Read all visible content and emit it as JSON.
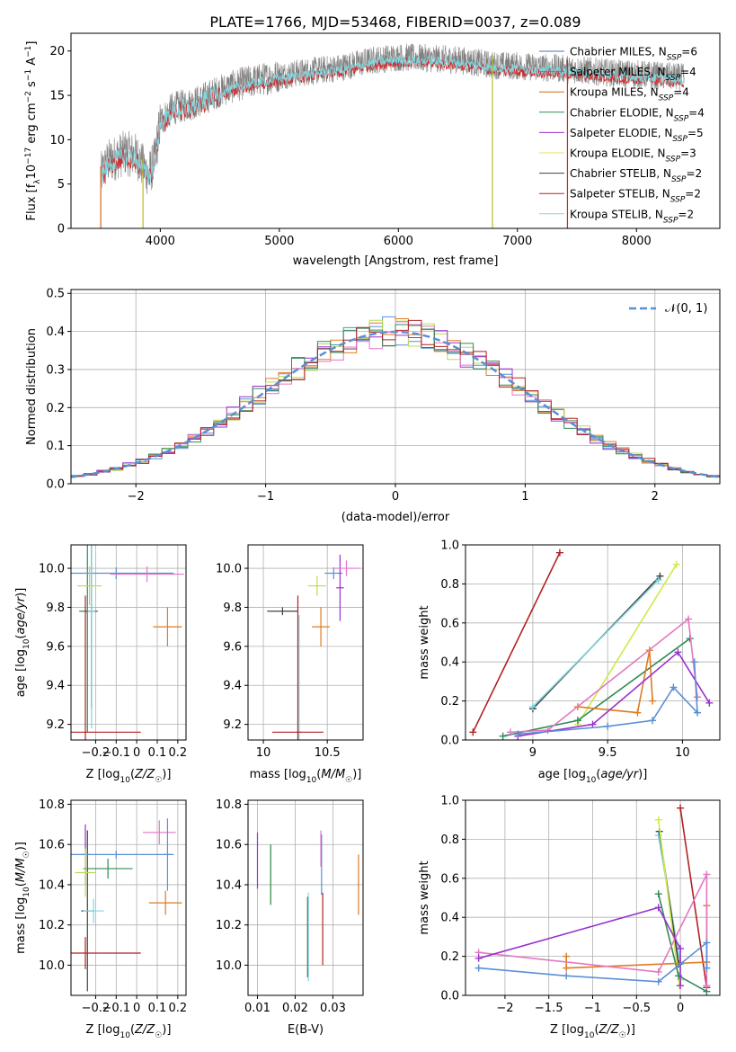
{
  "figure": {
    "title": "PLATE=1766, MJD=53468, FIBERID=0037, z=0.089"
  },
  "chart_data": [
    {
      "id": "spectrum",
      "type": "line",
      "xlabel": "wavelength [Angstrom, rest frame]",
      "ylabel": "Flux [f_λ10^-17 erg cm^-2 s^-1 A^-1]",
      "xlim": [
        3250,
        8700
      ],
      "ylim": [
        0,
        22
      ],
      "xticks": [
        4000,
        5000,
        6000,
        7000,
        8000
      ],
      "yticks": [
        0,
        5,
        10,
        15,
        20
      ],
      "grid": false,
      "legend_position": "top-right",
      "data_color": "#808080",
      "model_color": "#7ed7e0",
      "model2_color": "#d62728",
      "data_range": [
        3500,
        8400
      ],
      "spikes": [
        {
          "x": 3500,
          "color": "#d2691e"
        },
        {
          "x": 3855,
          "color": "#bcbd22"
        },
        {
          "x": 6790,
          "color": "#bcbd22"
        },
        {
          "x": 7420,
          "color": "#d62728"
        }
      ],
      "envelope": [
        [
          3500,
          6
        ],
        [
          3560,
          7.5
        ],
        [
          3700,
          8.5
        ],
        [
          3800,
          8.2
        ],
        [
          3900,
          6
        ],
        [
          3950,
          7.5
        ],
        [
          4000,
          12
        ],
        [
          4100,
          13.5
        ],
        [
          4300,
          14.2
        ],
        [
          4500,
          15.5
        ],
        [
          4700,
          16.4
        ],
        [
          5000,
          17.2
        ],
        [
          5200,
          17.6
        ],
        [
          5500,
          18.1
        ],
        [
          5800,
          19
        ],
        [
          6000,
          19.3
        ],
        [
          6200,
          19.2
        ],
        [
          6500,
          19
        ],
        [
          6800,
          18.4
        ],
        [
          7000,
          18.3
        ],
        [
          7400,
          18
        ],
        [
          7800,
          17.5
        ],
        [
          8000,
          17.4
        ],
        [
          8400,
          17
        ]
      ],
      "series": [
        {
          "name": "Chabrier MILES, N_SSP=6",
          "color": "#4c72b0"
        },
        {
          "name": "Salpeter MILES, N_SSP=4",
          "color": "#9467bd"
        },
        {
          "name": "Kroupa MILES, N_SSP=4",
          "color": "#d2691e"
        },
        {
          "name": "Chabrier ELODIE, N_SSP=4",
          "color": "#2e8b57"
        },
        {
          "name": "Salpeter ELODIE, N_SSP=5",
          "color": "#9932cc"
        },
        {
          "name": "Kroupa ELODIE, N_SSP=3",
          "color": "#e5e55c"
        },
        {
          "name": "Chabrier STELIB, N_SSP=2",
          "color": "#404040"
        },
        {
          "name": "Salpeter STELIB, N_SSP=2",
          "color": "#b22222"
        },
        {
          "name": "Kroupa STELIB, N_SSP=2",
          "color": "#7ed7e0"
        }
      ]
    },
    {
      "id": "residuals",
      "type": "line",
      "xlabel": "(data-model)/error",
      "ylabel": "Normed distribution",
      "xlim": [
        -2.5,
        2.5
      ],
      "ylim": [
        0,
        0.51
      ],
      "xticks": [
        -2,
        -1,
        0,
        1,
        2
      ],
      "yticks": [
        0.0,
        0.1,
        0.2,
        0.3,
        0.4,
        0.5
      ],
      "grid": true,
      "legend_position": "top-right",
      "gaussian_label": "𝒩(0, 1)",
      "gaussian_color": "#5b8fd6",
      "bin_width": 0.1,
      "series": [
        {
          "color": "#5b8fd6",
          "offset": 0.0
        },
        {
          "color": "#e07b20",
          "offset": 0.01
        },
        {
          "color": "#bada55",
          "offset": -0.01
        },
        {
          "color": "#9932cc",
          "offset": 0.015
        },
        {
          "color": "#e377c2",
          "offset": -0.005
        },
        {
          "color": "#2e8b57",
          "offset": 0.005
        },
        {
          "color": "#b22222",
          "offset": -0.012
        }
      ]
    },
    {
      "id": "age-vs-Z",
      "type": "scatter",
      "xlabel": "Z [log10(Z/Z☉)]",
      "ylabel": "age [log10(age/yr)]",
      "xlim": [
        -0.32,
        0.24
      ],
      "ylim": [
        9.12,
        10.12
      ],
      "xticks": [
        -0.2,
        -0.1,
        0.0,
        0.1,
        0.2
      ],
      "yticks": [
        9.2,
        9.4,
        9.6,
        9.8,
        10.0
      ],
      "grid": true,
      "points": [
        {
          "x": -0.24,
          "y": 9.78,
          "xerr": 0.04,
          "yerr": 0.62,
          "color": "#2e8b57"
        },
        {
          "x": -0.22,
          "y": 9.78,
          "xerr": 0.03,
          "yerr": 0.5,
          "color": "#404040"
        },
        {
          "x": -0.1,
          "y": 9.975,
          "xerr": 0.28,
          "yerr": 0.03,
          "color": "#5b8fd6"
        },
        {
          "x": 0.15,
          "y": 9.7,
          "xerr": 0.07,
          "yerr": 0.1,
          "color": "#e07b20"
        },
        {
          "x": -0.25,
          "y": 9.16,
          "xerr": 0.27,
          "yerr": 0.7,
          "color": "#b22222"
        },
        {
          "x": -0.22,
          "y": 9.78,
          "xerr": 0.02,
          "yerr": 0.6,
          "color": "#7ed7e0"
        },
        {
          "x": -0.23,
          "y": 9.91,
          "xerr": 0.06,
          "yerr": 0.1,
          "color": "#bada55"
        },
        {
          "x": 0.05,
          "y": 9.97,
          "xerr": 0.18,
          "yerr": 0.04,
          "color": "#e377c2"
        }
      ]
    },
    {
      "id": "age-vs-mass",
      "type": "scatter",
      "xlabel": "mass [log10(M/M☉)]",
      "ylabel": "",
      "xlim": [
        9.88,
        10.78
      ],
      "ylim": [
        9.12,
        10.12
      ],
      "xticks": [
        10.0,
        10.5
      ],
      "yticks": [
        9.2,
        9.4,
        9.6,
        9.8,
        10.0
      ],
      "grid": true,
      "points": [
        {
          "x": 10.15,
          "y": 9.78,
          "xerr": 0.12,
          "yerr": 0.02,
          "color": "#404040"
        },
        {
          "x": 10.28,
          "y": 9.16,
          "xerr": 0.02,
          "yerr": 0.6,
          "color": "#7ed7e0"
        },
        {
          "x": 10.27,
          "y": 9.16,
          "xerr": 0.2,
          "yerr": 0.7,
          "color": "#b22222"
        },
        {
          "x": 10.45,
          "y": 9.7,
          "xerr": 0.07,
          "yerr": 0.1,
          "color": "#e07b20"
        },
        {
          "x": 10.55,
          "y": 9.975,
          "xerr": 0.07,
          "yerr": 0.03,
          "color": "#5b8fd6"
        },
        {
          "x": 10.6,
          "y": 9.9,
          "xerr": 0.03,
          "yerr": 0.17,
          "color": "#9932cc"
        },
        {
          "x": 10.65,
          "y": 10.0,
          "xerr": 0.1,
          "yerr": 0.04,
          "color": "#e377c2"
        },
        {
          "x": 10.42,
          "y": 9.91,
          "xerr": 0.07,
          "yerr": 0.05,
          "color": "#bada55"
        }
      ]
    },
    {
      "id": "weight-vs-age",
      "type": "line",
      "xlabel": "age [log10(age/yr)]",
      "ylabel": "mass weight",
      "xlim": [
        8.55,
        10.25
      ],
      "ylim": [
        0,
        1
      ],
      "xticks": [
        9.0,
        9.5,
        10.0
      ],
      "yticks": [
        0.0,
        0.2,
        0.4,
        0.6,
        0.8,
        1.0
      ],
      "grid": true,
      "series": [
        {
          "color": "#b22222",
          "points": [
            [
              8.6,
              0.04
            ],
            [
              9.18,
              0.96
            ]
          ]
        },
        {
          "color": "#404040",
          "points": [
            [
              9.0,
              0.16
            ],
            [
              9.85,
              0.84
            ]
          ]
        },
        {
          "color": "#7ed7e0",
          "points": [
            [
              9.0,
              0.17
            ],
            [
              9.84,
              0.82
            ]
          ]
        },
        {
          "color": "#cfea4a",
          "points": [
            [
              9.3,
              0.08
            ],
            [
              9.96,
              0.9
            ]
          ]
        },
        {
          "color": "#2e8b57",
          "points": [
            [
              8.8,
              0.02
            ],
            [
              9.3,
              0.1
            ],
            [
              10.05,
              0.52
            ]
          ]
        },
        {
          "color": "#e07b20",
          "points": [
            [
              9.3,
              0.17
            ],
            [
              9.7,
              0.14
            ],
            [
              9.78,
              0.46
            ],
            [
              9.8,
              0.2
            ]
          ]
        },
        {
          "color": "#e377c2",
          "points": [
            [
              8.85,
              0.04
            ],
            [
              9.1,
              0.05
            ],
            [
              10.04,
              0.62
            ],
            [
              10.1,
              0.22
            ]
          ]
        },
        {
          "color": "#9932cc",
          "points": [
            [
              8.9,
              0.02
            ],
            [
              9.4,
              0.08
            ],
            [
              9.97,
              0.45
            ],
            [
              10.18,
              0.19
            ]
          ]
        },
        {
          "color": "#5b8fd6",
          "points": [
            [
              8.9,
              0.03
            ],
            [
              9.5,
              0.07
            ],
            [
              9.8,
              0.1
            ],
            [
              9.94,
              0.27
            ],
            [
              10.1,
              0.14
            ],
            [
              10.08,
              0.4
            ]
          ]
        }
      ]
    },
    {
      "id": "mass-vs-Z",
      "type": "scatter",
      "xlabel": "Z [log10(Z/Z☉)]",
      "ylabel": "mass [log10(M/M☉)]",
      "xlim": [
        -0.32,
        0.24
      ],
      "ylim": [
        9.85,
        10.82
      ],
      "xticks": [
        -0.2,
        -0.1,
        0.0,
        0.1,
        0.2
      ],
      "yticks": [
        10.0,
        10.2,
        10.4,
        10.6,
        10.8
      ],
      "grid": true,
      "points": [
        {
          "x": -0.25,
          "y": 10.55,
          "xerr": 0.02,
          "yerr": 0.15,
          "color": "#9932cc"
        },
        {
          "x": -0.24,
          "y": 10.27,
          "xerr": 0.03,
          "yerr": 0.4,
          "color": "#404040"
        },
        {
          "x": -0.1,
          "y": 10.55,
          "xerr": 0.28,
          "yerr": 0.02,
          "color": "#5b8fd6"
        },
        {
          "x": -0.14,
          "y": 10.48,
          "xerr": 0.12,
          "yerr": 0.05,
          "color": "#2e8b57"
        },
        {
          "x": -0.25,
          "y": 10.46,
          "xerr": 0.05,
          "yerr": 0.12,
          "color": "#bada55"
        },
        {
          "x": 0.14,
          "y": 10.31,
          "xerr": 0.08,
          "yerr": 0.06,
          "color": "#e07b20"
        },
        {
          "x": -0.25,
          "y": 10.06,
          "xerr": 0.27,
          "yerr": 0.08,
          "color": "#b22222"
        },
        {
          "x": -0.21,
          "y": 10.27,
          "xerr": 0.05,
          "yerr": 0.06,
          "color": "#7ed7e0"
        },
        {
          "x": 0.11,
          "y": 10.66,
          "xerr": 0.08,
          "yerr": 0.06,
          "color": "#e377c2"
        },
        {
          "x": 0.15,
          "y": 10.55,
          "xerr": 0.02,
          "yerr": 0.18,
          "color": "#5b8fd6"
        }
      ]
    },
    {
      "id": "mass-vs-ebv",
      "type": "scatter",
      "xlabel": "E(B-V)",
      "ylabel": "",
      "xlim": [
        0.0075,
        0.038
      ],
      "ylim": [
        9.85,
        10.82
      ],
      "xticks": [
        0.01,
        0.02,
        0.03
      ],
      "yticks": [
        10.0,
        10.2,
        10.4,
        10.6,
        10.8
      ],
      "grid": true,
      "points": [
        {
          "x": 0.01,
          "y": 10.52,
          "yerr": 0.14,
          "color": "#9932cc"
        },
        {
          "x": 0.0135,
          "y": 10.45,
          "yerr": 0.15,
          "color": "#bada55"
        },
        {
          "x": 0.0135,
          "y": 10.45,
          "yerr": 0.15,
          "color": "#2e8b57"
        },
        {
          "x": 0.0233,
          "y": 10.14,
          "yerr": 0.2,
          "color": "#404040"
        },
        {
          "x": 0.0235,
          "y": 10.14,
          "yerr": 0.22,
          "color": "#7ed7e0"
        },
        {
          "x": 0.0268,
          "y": 10.58,
          "yerr": 0.09,
          "color": "#e377c2"
        },
        {
          "x": 0.027,
          "y": 10.5,
          "yerr": 0.15,
          "color": "#5b8fd6"
        },
        {
          "x": 0.0273,
          "y": 10.18,
          "yerr": 0.18,
          "color": "#b22222"
        },
        {
          "x": 0.0368,
          "y": 10.4,
          "yerr": 0.15,
          "color": "#e07b20"
        }
      ]
    },
    {
      "id": "weight-vs-Z",
      "type": "line",
      "xlabel": "Z [log10(Z/Z☉)]",
      "ylabel": "mass weight",
      "xlim": [
        -2.45,
        0.45
      ],
      "ylim": [
        0,
        1
      ],
      "xticks": [
        -2.0,
        -1.5,
        -1.0,
        -0.5,
        0.0
      ],
      "yticks": [
        0.0,
        0.2,
        0.4,
        0.6,
        0.8,
        1.0
      ],
      "grid": true,
      "series": [
        {
          "color": "#b22222",
          "points": [
            [
              0.0,
              0.96
            ],
            [
              0.3,
              0.04
            ]
          ]
        },
        {
          "color": "#7ed7e0",
          "points": [
            [
              -0.25,
              0.82
            ],
            [
              0.0,
              0.16
            ]
          ]
        },
        {
          "color": "#404040",
          "points": [
            [
              -0.24,
              0.84
            ],
            [
              -0.02,
              0.16
            ]
          ]
        },
        {
          "color": "#cfea4a",
          "points": [
            [
              -0.25,
              0.9
            ],
            [
              -0.01,
              0.05
            ],
            [
              0.0,
              0.08
            ]
          ]
        },
        {
          "color": "#2e8b57",
          "points": [
            [
              -0.25,
              0.52
            ],
            [
              -0.02,
              0.1
            ],
            [
              0.3,
              0.02
            ]
          ]
        },
        {
          "color": "#e07b20",
          "points": [
            [
              -1.3,
              0.2
            ],
            [
              -1.3,
              0.14
            ],
            [
              0.3,
              0.17
            ],
            [
              0.3,
              0.46
            ]
          ]
        },
        {
          "color": "#e377c2",
          "points": [
            [
              -2.3,
              0.22
            ],
            [
              -0.25,
              0.12
            ],
            [
              0.3,
              0.62
            ],
            [
              0.3,
              0.05
            ]
          ]
        },
        {
          "color": "#9932cc",
          "points": [
            [
              -2.3,
              0.19
            ],
            [
              -0.25,
              0.45
            ],
            [
              0.0,
              0.24
            ],
            [
              0.0,
              0.05
            ]
          ]
        },
        {
          "color": "#5b8fd6",
          "points": [
            [
              -2.3,
              0.14
            ],
            [
              -1.3,
              0.1
            ],
            [
              -0.25,
              0.07
            ],
            [
              0.3,
              0.27
            ],
            [
              0.3,
              0.14
            ]
          ]
        }
      ]
    }
  ]
}
